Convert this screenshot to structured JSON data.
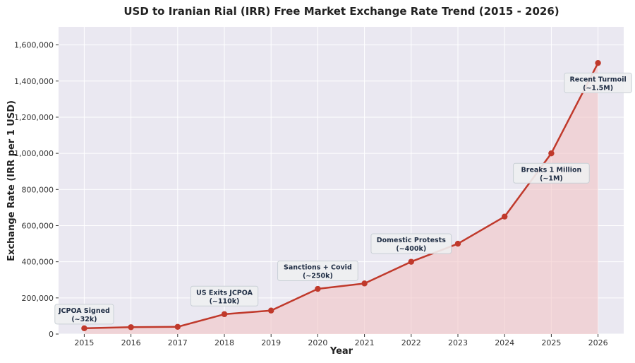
{
  "chart_data": {
    "type": "line",
    "title": "USD to Iranian Rial (IRR) Free Market Exchange Rate Trend (2015 - 2026)",
    "xlabel": "Year",
    "ylabel": "Exchange Rate (IRR per 1 USD)",
    "x": [
      2015,
      2016,
      2017,
      2018,
      2019,
      2020,
      2021,
      2022,
      2023,
      2024,
      2025,
      2026
    ],
    "values": [
      32000,
      38000,
      40000,
      110000,
      130000,
      250000,
      280000,
      400000,
      500000,
      650000,
      1000000,
      1500000
    ],
    "ylim": [
      0,
      1700000
    ],
    "yticks": [
      0,
      200000,
      400000,
      600000,
      800000,
      1000000,
      1200000,
      1400000,
      1600000
    ],
    "ytick_labels": [
      "0",
      "200,000",
      "400,000",
      "600,000",
      "800,000",
      "1,000,000",
      "1,200,000",
      "1,400,000",
      "1,600,000"
    ],
    "xtick_labels": [
      "2015",
      "2016",
      "2017",
      "2018",
      "2019",
      "2020",
      "2021",
      "2022",
      "2023",
      "2024",
      "2025",
      "2026"
    ],
    "grid": true,
    "line_color": "#c0392b",
    "fill_color": "#f2c4c6",
    "plot_bg": "#eae8f1",
    "annotations": [
      {
        "year": 2015,
        "value": 110000,
        "line1": "JCPOA Signed",
        "line2": "(~32k)"
      },
      {
        "year": 2018,
        "value": 210000,
        "line1": "US Exits JCPOA",
        "line2": "(~110k)"
      },
      {
        "year": 2020,
        "value": 350000,
        "line1": "Sanctions + Covid",
        "line2": "(~250k)"
      },
      {
        "year": 2022,
        "value": 500000,
        "line1": "Domestic Protests",
        "line2": "(~400k)"
      },
      {
        "year": 2025,
        "value": 890000,
        "line1": "Breaks 1 Million",
        "line2": "(~1M)"
      },
      {
        "year": 2026,
        "value": 1390000,
        "line1": "Recent Turmoil",
        "line2": "(~1.5M)"
      }
    ]
  }
}
